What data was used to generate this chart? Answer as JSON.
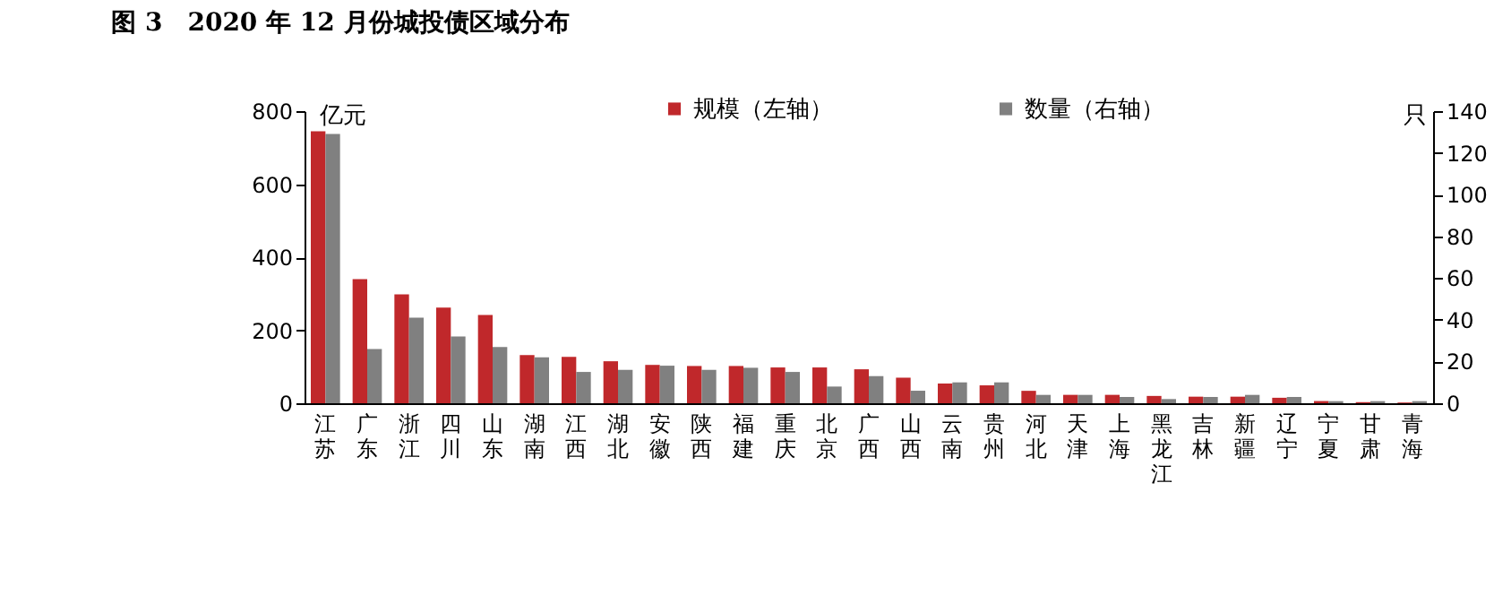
{
  "chart_data": {
    "type": "bar",
    "title": "图 3　2020 年 12 月份城投债区域分布",
    "ylabel": "亿元",
    "y2label": "只",
    "categories": [
      "江苏",
      "广东",
      "浙江",
      "四川",
      "山东",
      "湖南",
      "江西",
      "湖北",
      "安徽",
      "陕西",
      "福建",
      "重庆",
      "北京",
      "广西",
      "山西",
      "云南",
      "贵州",
      "河北",
      "天津",
      "上海",
      "黑龙江",
      "吉林",
      "新疆",
      "辽宁",
      "宁夏",
      "甘肃",
      "青海"
    ],
    "series": [
      {
        "name": "规模（左轴）",
        "color": "#c0282b",
        "values": [
          745,
          340,
          298,
          262,
          242,
          132,
          127,
          115,
          105,
          102,
          102,
          98,
          98,
          93,
          70,
          54,
          49,
          34,
          23,
          23,
          20,
          18,
          18,
          15,
          6,
          3,
          2
        ]
      },
      {
        "name": "数量（右轴）",
        "color": "#808080",
        "axis": "y2",
        "values": [
          129,
          26,
          41,
          32,
          27,
          22,
          15,
          16,
          18,
          16,
          17,
          15,
          8,
          13,
          6,
          10,
          10,
          4,
          4,
          3,
          2,
          3,
          4,
          3,
          1,
          1,
          1
        ]
      }
    ],
    "ylim": [
      0,
      800
    ],
    "yticks": [
      0,
      200,
      400,
      600,
      800
    ],
    "y2lim": [
      0,
      140
    ],
    "y2ticks": [
      0,
      20,
      40,
      60,
      80,
      100,
      120,
      140
    ],
    "legend": "top",
    "grid": false
  }
}
